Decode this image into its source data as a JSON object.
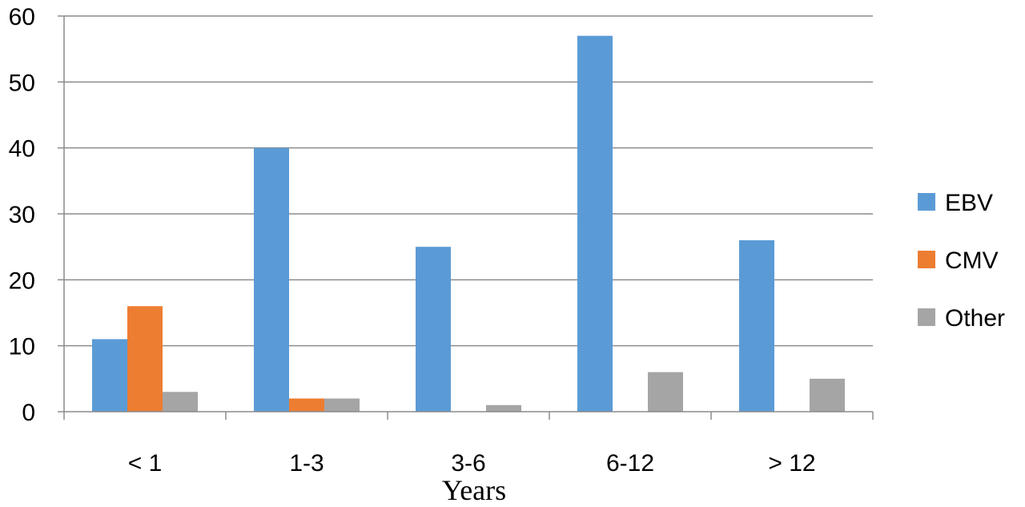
{
  "chart_data": {
    "type": "bar",
    "categories": [
      "< 1",
      "1-3",
      "3-6",
      "6-12",
      "> 12"
    ],
    "series": [
      {
        "name": "EBV",
        "values": [
          11,
          40,
          25,
          57,
          26
        ],
        "color": "#5b9bd5"
      },
      {
        "name": "CMV",
        "values": [
          16,
          2,
          0,
          0,
          0
        ],
        "color": "#ed7d31"
      },
      {
        "name": "Other",
        "values": [
          3,
          2,
          1,
          6,
          5
        ],
        "color": "#a5a5a5"
      }
    ],
    "title": "",
    "xlabel": "Years",
    "ylabel": "",
    "ylim": [
      0,
      60
    ],
    "yticks": [
      0,
      10,
      20,
      30,
      40,
      50,
      60
    ],
    "grid": true,
    "legend_position": "right"
  }
}
